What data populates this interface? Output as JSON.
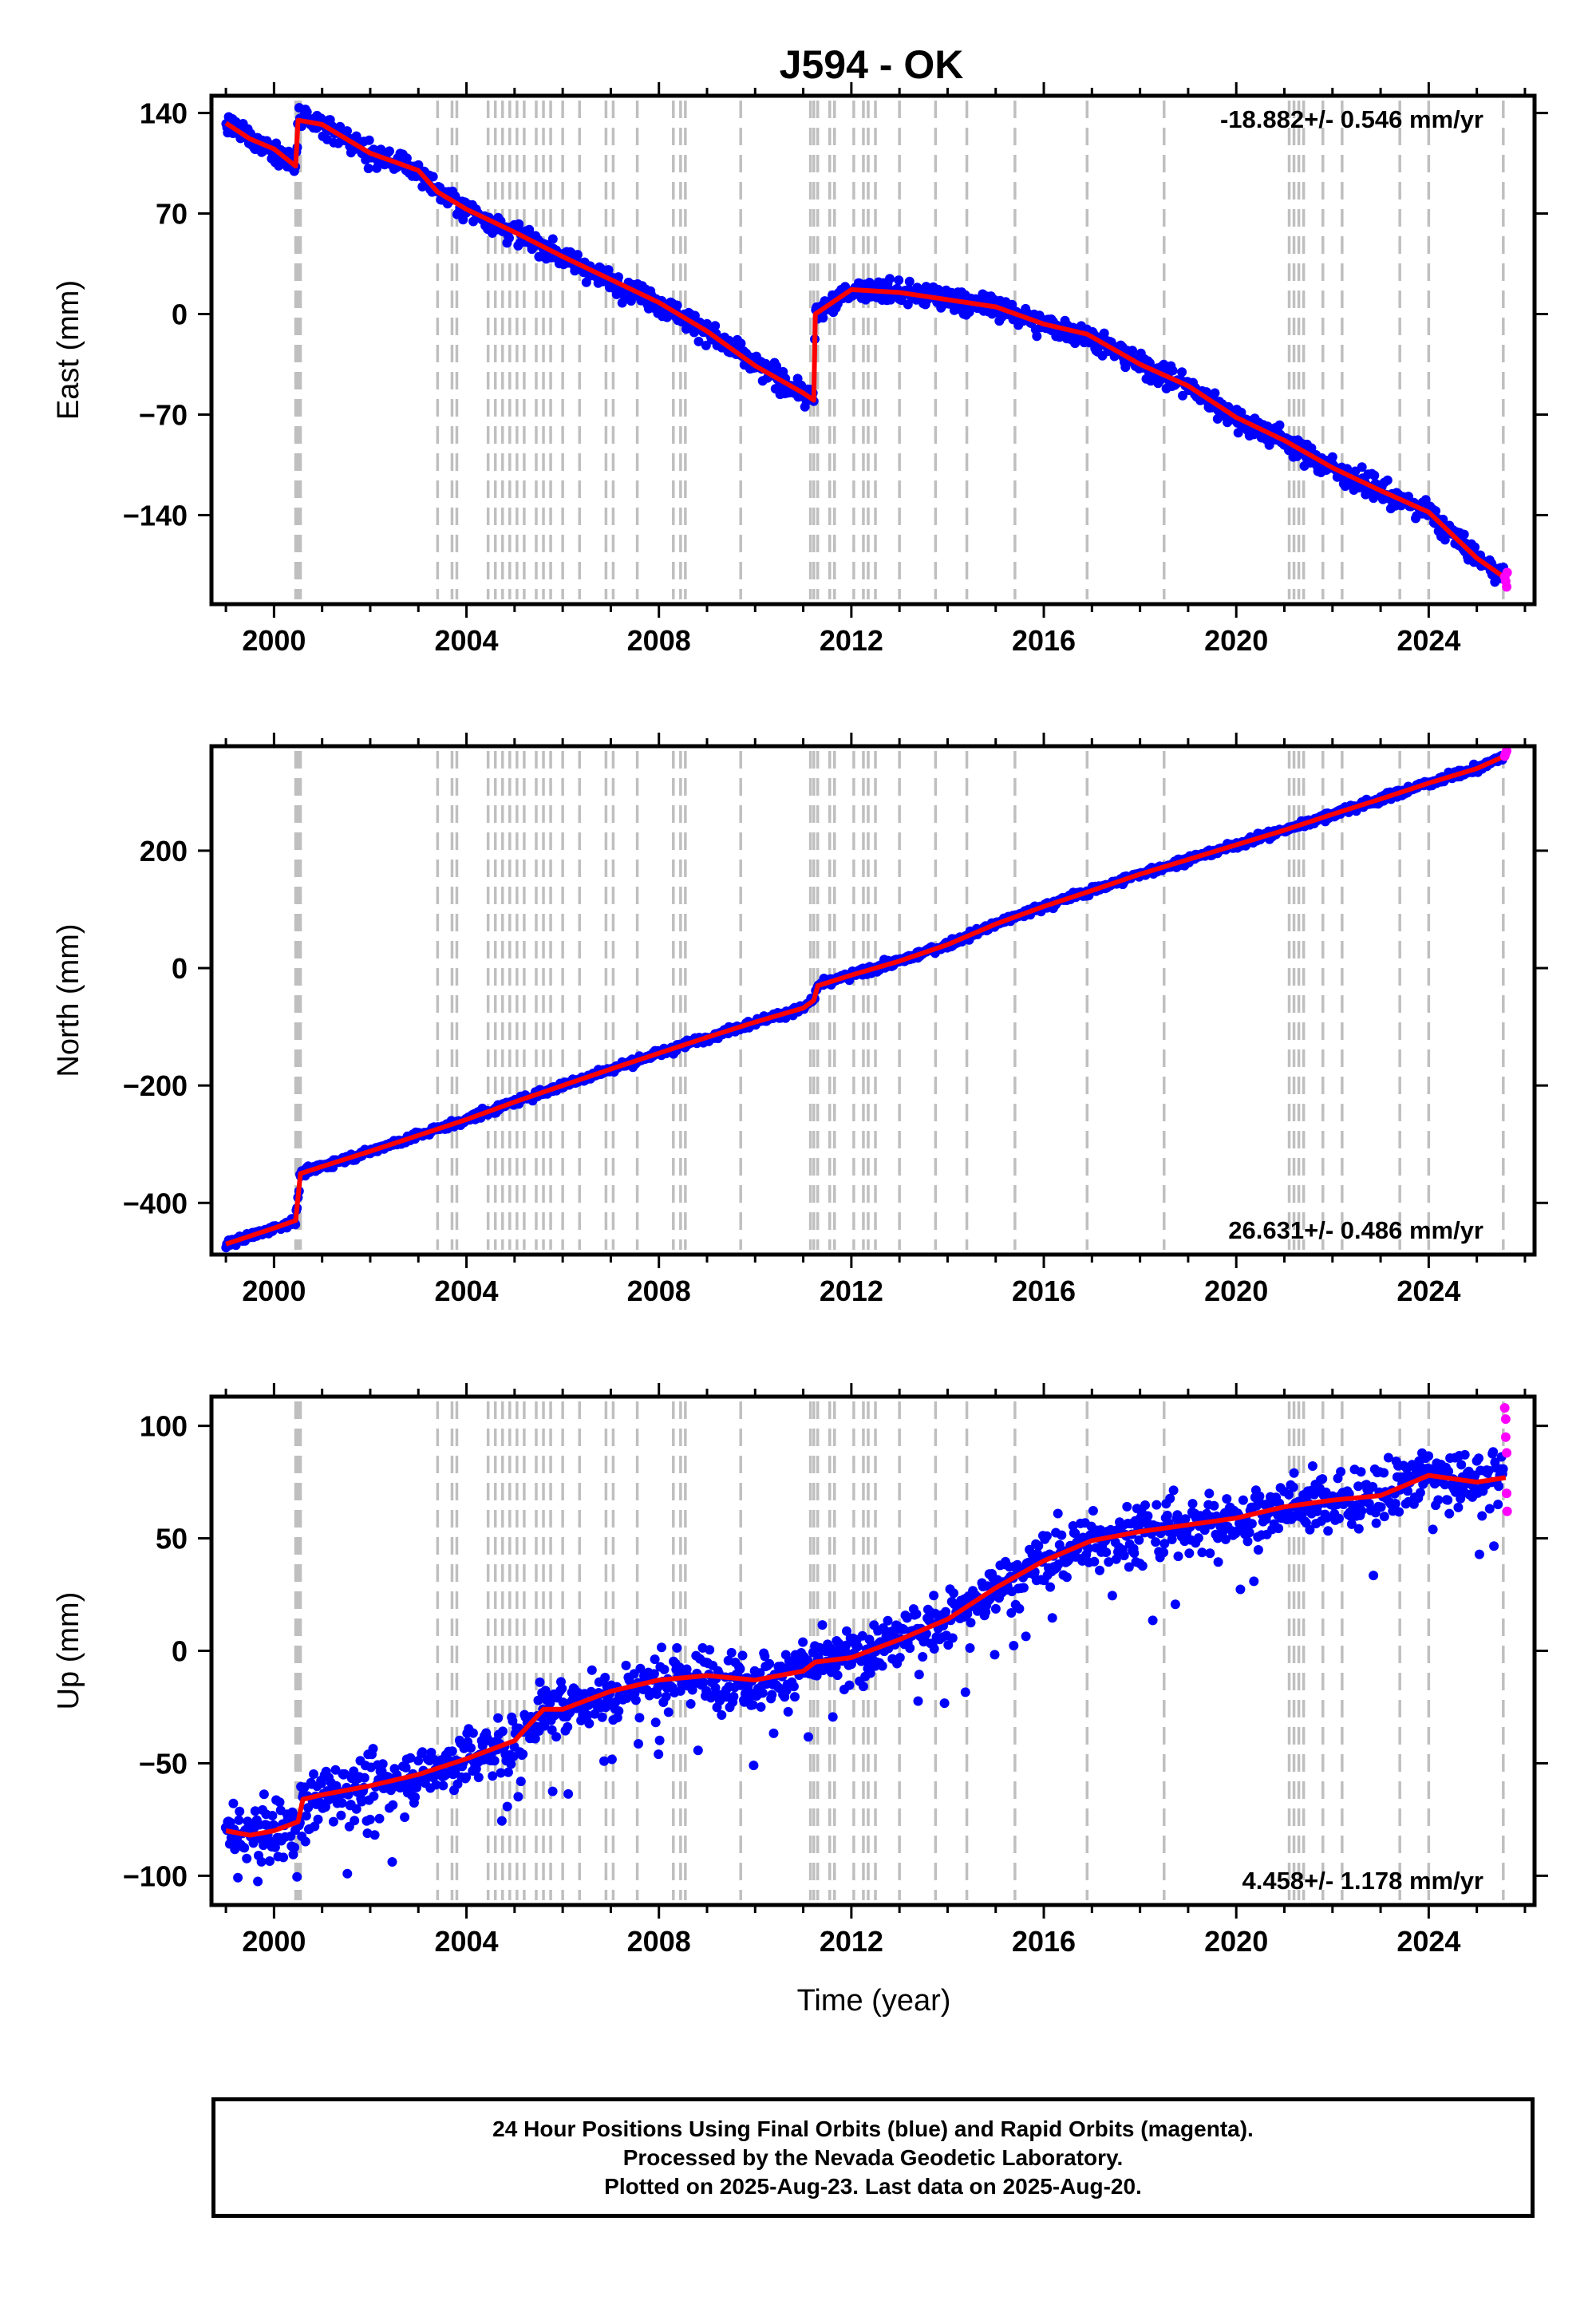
{
  "title": "J594 - OK",
  "colors": {
    "final_orbits": "#0000ff",
    "rapid_orbits": "#ff00ff",
    "model": "#ff0000",
    "event_lines": "#bfbfbf"
  },
  "chart_data": [
    {
      "type": "scatter",
      "ylabel": "East (mm)",
      "xlim": [
        1998.7,
        2026.2
      ],
      "ylim": [
        -202,
        152
      ],
      "x_ticks": [
        2000,
        2004,
        2008,
        2012,
        2016,
        2020,
        2024
      ],
      "y_ticks": [
        140,
        70,
        0,
        -70,
        -140
      ],
      "y_tick_labels": [
        "140",
        "70",
        "0",
        "−70",
        "−140"
      ],
      "rate_label": "-18.882+/- 0.546 mm/yr",
      "rate_position": "top-right",
      "series": [
        {
          "name": "final orbits (blue)",
          "style": "points",
          "x": [
            1999.0,
            1999.5,
            2000.0,
            2000.45,
            2000.5,
            2001.0,
            2002.0,
            2003.0,
            2003.4,
            2004.0,
            2005.0,
            2006.0,
            2007.0,
            2008.0,
            2009.0,
            2010.0,
            2011.0,
            2011.22,
            2011.25,
            2012.0,
            2013.0,
            2014.0,
            2015.0,
            2016.0,
            2016.9,
            2018.0,
            2019.0,
            2020.0,
            2021.0,
            2022.0,
            2023.0,
            2024.0,
            2025.0,
            2025.55
          ],
          "y": [
            133,
            122,
            115,
            103,
            135,
            132,
            112,
            100,
            85,
            73,
            57,
            40,
            24,
            8,
            -12,
            -36,
            -55,
            -60,
            0,
            17,
            15,
            10,
            5,
            -7,
            -14,
            -35,
            -50,
            -72,
            -88,
            -107,
            -123,
            -138,
            -170,
            -182
          ]
        },
        {
          "name": "rapid orbits (magenta)",
          "style": "points",
          "x": [
            2025.58,
            2025.6,
            2025.62,
            2025.63
          ],
          "y": [
            -183,
            -186,
            -190,
            -180
          ]
        },
        {
          "name": "model",
          "style": "line",
          "x": [
            1999.0,
            1999.5,
            2000.0,
            2000.45,
            2000.5,
            2001.0,
            2002.0,
            2003.0,
            2003.4,
            2004.0,
            2005.0,
            2006.0,
            2007.0,
            2008.0,
            2009.0,
            2010.0,
            2011.0,
            2011.22,
            2011.25,
            2012.0,
            2013.0,
            2014.0,
            2015.0,
            2016.0,
            2016.9,
            2018.0,
            2019.0,
            2020.0,
            2021.0,
            2022.0,
            2023.0,
            2024.0,
            2025.0,
            2025.6
          ],
          "y": [
            133,
            122,
            115,
            103,
            135,
            132,
            112,
            100,
            85,
            73,
            57,
            40,
            24,
            8,
            -12,
            -36,
            -55,
            -60,
            0,
            17,
            15,
            10,
            5,
            -7,
            -14,
            -35,
            -50,
            -72,
            -88,
            -107,
            -123,
            -138,
            -170,
            -184
          ]
        }
      ]
    },
    {
      "type": "scatter",
      "ylabel": "North (mm)",
      "xlim": [
        1998.7,
        2026.2
      ],
      "ylim": [
        -488,
        378
      ],
      "x_ticks": [
        2000,
        2004,
        2008,
        2012,
        2016,
        2020,
        2024
      ],
      "y_ticks": [
        200,
        0,
        -200,
        -400
      ],
      "y_tick_labels": [
        "200",
        "0",
        "−200",
        "−400"
      ],
      "rate_label": "26.631+/- 0.486 mm/yr",
      "rate_position": "bottom-right",
      "series": [
        {
          "name": "final orbits (blue)",
          "style": "points",
          "x": [
            1999.0,
            2000.0,
            2000.45,
            2000.55,
            2001.0,
            2002.0,
            2003.0,
            2004.0,
            2005.0,
            2006.0,
            2007.0,
            2008.0,
            2009.0,
            2010.0,
            2011.0,
            2011.22,
            2011.3,
            2012.0,
            2013.0,
            2014.0,
            2015.0,
            2016.0,
            2017.0,
            2018.0,
            2019.0,
            2020.0,
            2021.0,
            2022.0,
            2023.0,
            2024.0,
            2025.0,
            2025.55
          ],
          "y": [
            -470,
            -443,
            -430,
            -350,
            -338,
            -312,
            -285,
            -258,
            -228,
            -200,
            -172,
            -145,
            -118,
            -92,
            -68,
            -55,
            -30,
            -12,
            12,
            40,
            75,
            105,
            132,
            160,
            185,
            210,
            235,
            262,
            288,
            315,
            340,
            360
          ]
        },
        {
          "name": "rapid orbits (magenta)",
          "style": "points",
          "x": [
            2025.58,
            2025.6,
            2025.62
          ],
          "y": [
            361,
            366,
            370
          ]
        },
        {
          "name": "model",
          "style": "line",
          "x": [
            1999.0,
            2000.0,
            2000.45,
            2000.55,
            2001.0,
            2002.0,
            2003.0,
            2004.0,
            2005.0,
            2006.0,
            2007.0,
            2008.0,
            2009.0,
            2010.0,
            2011.0,
            2011.22,
            2011.3,
            2012.0,
            2013.0,
            2014.0,
            2015.0,
            2016.0,
            2017.0,
            2018.0,
            2019.0,
            2020.0,
            2021.0,
            2022.0,
            2023.0,
            2024.0,
            2025.0,
            2025.6
          ],
          "y": [
            -470,
            -443,
            -430,
            -350,
            -338,
            -312,
            -285,
            -258,
            -228,
            -200,
            -172,
            -145,
            -118,
            -92,
            -68,
            -55,
            -30,
            -12,
            12,
            40,
            75,
            105,
            132,
            160,
            185,
            210,
            235,
            262,
            288,
            315,
            340,
            362
          ]
        }
      ]
    },
    {
      "type": "scatter",
      "xlabel": "Time (year)",
      "ylabel": "Up (mm)",
      "xlim": [
        1998.7,
        2026.2
      ],
      "ylim": [
        -113,
        113
      ],
      "x_ticks": [
        2000,
        2004,
        2008,
        2012,
        2016,
        2020,
        2024
      ],
      "y_ticks": [
        100,
        50,
        0,
        -50,
        -100
      ],
      "y_tick_labels": [
        "100",
        "50",
        "0",
        "−50",
        "−100"
      ],
      "rate_label": "4.458+/- 1.178 mm/yr",
      "rate_position": "bottom-right",
      "series": [
        {
          "name": "final orbits (blue)",
          "style": "points",
          "x": [
            1999.0,
            1999.5,
            2000.0,
            2000.5,
            2000.6,
            2001.0,
            2002.0,
            2003.0,
            2004.0,
            2005.0,
            2005.6,
            2006.0,
            2007.0,
            2008.0,
            2009.0,
            2010.0,
            2011.0,
            2011.25,
            2012.0,
            2013.0,
            2014.0,
            2015.0,
            2016.0,
            2017.0,
            2018.0,
            2019.0,
            2020.0,
            2021.0,
            2022.0,
            2023.0,
            2024.0,
            2025.0,
            2025.55
          ],
          "y": [
            -80,
            -82,
            -80,
            -76,
            -66,
            -64,
            -60,
            -55,
            -48,
            -40,
            -26,
            -26,
            -18,
            -13,
            -11,
            -13,
            -9,
            -5,
            -3,
            5,
            14,
            28,
            40,
            49,
            53,
            56,
            59,
            64,
            67,
            69,
            78,
            75,
            78
          ]
        },
        {
          "name": "rapid orbits (magenta)",
          "style": "points",
          "x": [
            2025.58,
            2025.6,
            2025.6,
            2025.62,
            2025.62,
            2025.63
          ],
          "y": [
            108,
            103,
            95,
            88,
            70,
            62
          ]
        },
        {
          "name": "model",
          "style": "line",
          "x": [
            1999.0,
            1999.5,
            2000.0,
            2000.5,
            2000.6,
            2001.0,
            2002.0,
            2003.0,
            2004.0,
            2005.0,
            2005.6,
            2006.0,
            2007.0,
            2008.0,
            2009.0,
            2010.0,
            2011.0,
            2011.25,
            2012.0,
            2013.0,
            2014.0,
            2015.0,
            2016.0,
            2017.0,
            2018.0,
            2019.0,
            2020.0,
            2021.0,
            2022.0,
            2023.0,
            2024.0,
            2025.0,
            2025.6
          ],
          "y": [
            -80,
            -82,
            -80,
            -76,
            -66,
            -64,
            -60,
            -55,
            -48,
            -40,
            -26,
            -26,
            -18,
            -13,
            -11,
            -13,
            -9,
            -5,
            -3,
            5,
            14,
            28,
            40,
            49,
            53,
            56,
            59,
            64,
            67,
            69,
            78,
            75,
            77
          ]
        }
      ]
    }
  ],
  "event_lines": [
    2000.45,
    2000.5,
    2000.55,
    2003.4,
    2003.7,
    2003.8,
    2004.45,
    2004.6,
    2004.75,
    2004.9,
    2005.05,
    2005.2,
    2005.45,
    2005.6,
    2005.75,
    2006.0,
    2006.35,
    2006.9,
    2007.05,
    2007.55,
    2008.3,
    2008.45,
    2008.55,
    2009.7,
    2011.15,
    2011.22,
    2011.3,
    2011.55,
    2011.65,
    2012.05,
    2012.25,
    2012.35,
    2012.5,
    2013.0,
    2013.75,
    2014.4,
    2015.4,
    2016.9,
    2018.5,
    2021.1,
    2021.2,
    2021.3,
    2021.4,
    2021.8,
    2022.2,
    2023.4,
    2024.0,
    2025.55
  ],
  "note": {
    "line1": "24 Hour Positions Using Final Orbits (blue) and Rapid Orbits (magenta).",
    "line2": "Processed by the Nevada Geodetic Laboratory.",
    "line3": "Plotted on 2025-Aug-23. Last data on 2025-Aug-20."
  }
}
